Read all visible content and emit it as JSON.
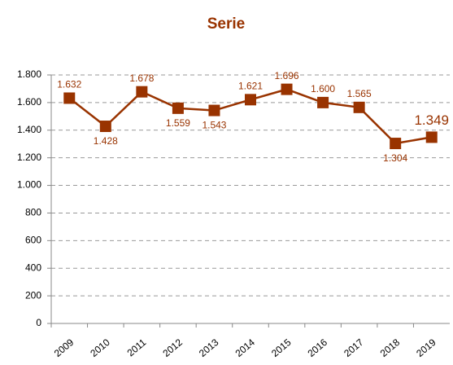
{
  "chart_data": {
    "type": "line",
    "title": "Serie",
    "categories": [
      "2009",
      "2010",
      "2011",
      "2012",
      "2013",
      "2014",
      "2015",
      "2016",
      "2017",
      "2018",
      "2019"
    ],
    "values": [
      1632,
      1428,
      1678,
      1559,
      1543,
      1621,
      1696,
      1600,
      1565,
      1304,
      1349
    ],
    "value_labels": [
      "1.632",
      "1.428",
      "1.678",
      "1.559",
      "1.543",
      "1.621",
      "1.696",
      "1.600",
      "1.565",
      "1.304",
      "1.349"
    ],
    "color": "#993300",
    "ylim": [
      0,
      1800
    ],
    "yticks": [
      0,
      200,
      400,
      600,
      800,
      {
        "value": 1000,
        "label": "1.000"
      },
      {
        "value": 1200,
        "label": "1.200"
      },
      {
        "value": 1400,
        "label": "1.400"
      },
      {
        "value": 1600,
        "label": "1.600"
      },
      {
        "value": 1800,
        "label": "1.800"
      }
    ],
    "grid": true
  }
}
